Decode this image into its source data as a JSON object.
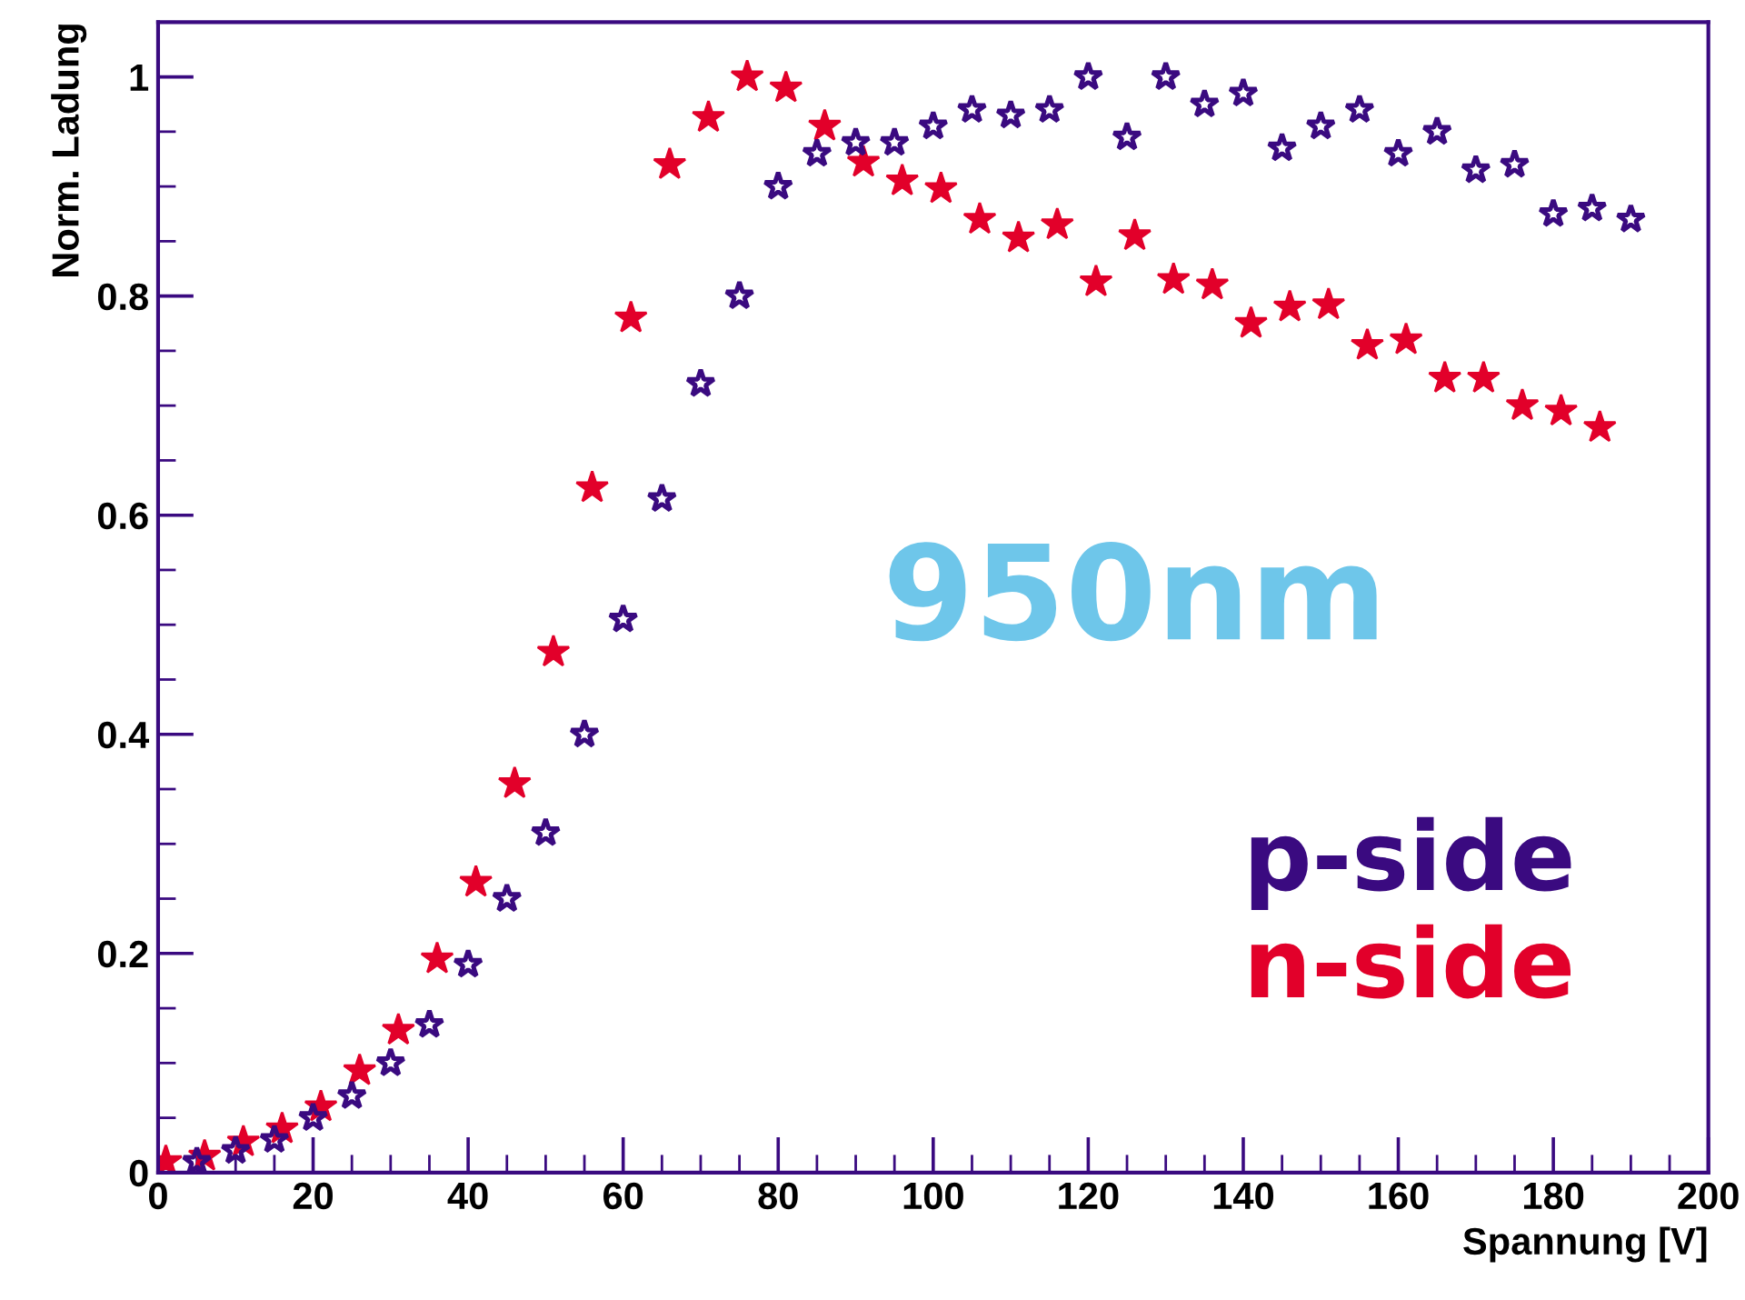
{
  "chart_data": {
    "type": "scatter",
    "xlabel": "Spannung [V]",
    "ylabel": "Norm. Ladung",
    "annotations": [
      "950nm"
    ],
    "xlim": [
      0,
      200
    ],
    "xticks": [
      0,
      20,
      40,
      60,
      80,
      100,
      120,
      140,
      160,
      180,
      200
    ],
    "ylim": [
      0,
      1.05
    ],
    "yticks": [
      0,
      0.2,
      0.4,
      0.6,
      0.8,
      1
    ],
    "grid": false,
    "legend": "bottom right",
    "marker": "star",
    "series": [
      {
        "name": "p-side",
        "color": "#3a0a80",
        "x": [
          5,
          10,
          15,
          20,
          25,
          30,
          35,
          40,
          45,
          50,
          55,
          60,
          65,
          70,
          75,
          80,
          85,
          90,
          95,
          100,
          105,
          110,
          115,
          120,
          125,
          130,
          135,
          140,
          145,
          150,
          155,
          160,
          165,
          170,
          175,
          180,
          185,
          190
        ],
        "values": [
          0.01,
          0.02,
          0.03,
          0.05,
          0.07,
          0.1,
          0.135,
          0.19,
          0.25,
          0.31,
          0.4,
          0.505,
          0.615,
          0.72,
          0.8,
          0.9,
          0.93,
          0.94,
          0.94,
          0.955,
          0.97,
          0.965,
          0.97,
          1.0,
          0.945,
          1.0,
          0.975,
          0.985,
          0.935,
          0.955,
          0.97,
          0.93,
          0.95,
          0.915,
          0.92,
          0.875,
          0.88,
          0.87
        ]
      },
      {
        "name": "n-side",
        "color": "#e2002a",
        "x": [
          1,
          6,
          11,
          16,
          21,
          26,
          31,
          36,
          41,
          46,
          51,
          56,
          61,
          66,
          71,
          76,
          81,
          86,
          91,
          96,
          101,
          106,
          111,
          116,
          121,
          126,
          131,
          136,
          141,
          146,
          151,
          156,
          161,
          166,
          171,
          176,
          181,
          186
        ],
        "values": [
          0.01,
          0.015,
          0.028,
          0.04,
          0.06,
          0.093,
          0.13,
          0.195,
          0.265,
          0.355,
          0.475,
          0.625,
          0.78,
          0.92,
          0.963,
          1.0,
          0.99,
          0.955,
          0.922,
          0.905,
          0.898,
          0.87,
          0.853,
          0.865,
          0.813,
          0.855,
          0.815,
          0.81,
          0.775,
          0.79,
          0.792,
          0.755,
          0.76,
          0.725,
          0.725,
          0.7,
          0.695,
          0.68
        ]
      }
    ]
  }
}
